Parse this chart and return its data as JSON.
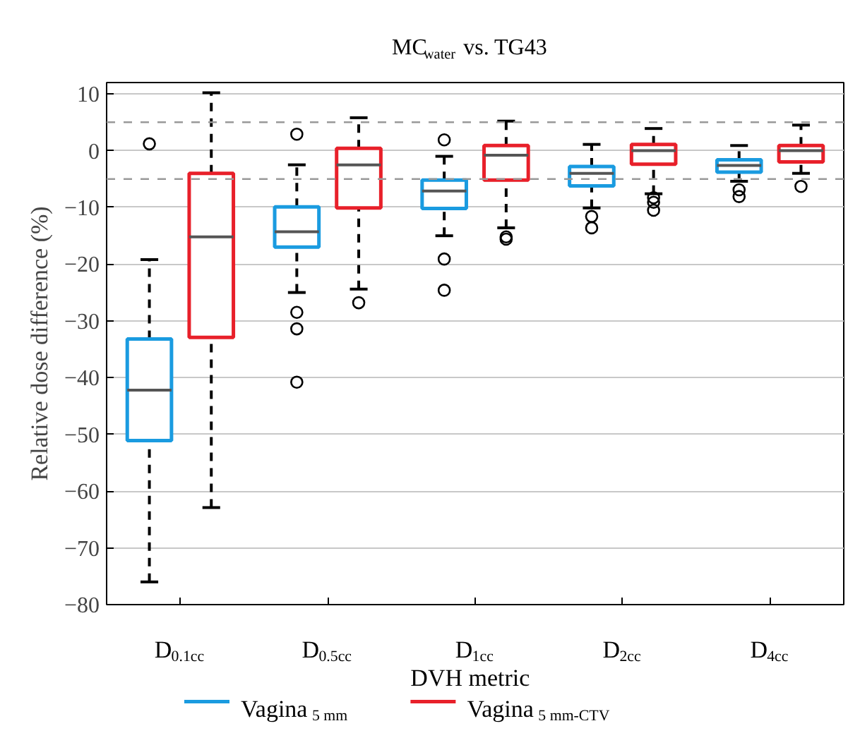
{
  "chart_data": {
    "type": "box",
    "title": "MC$_{water}$ vs. TG43",
    "xlabel": "DVH metric",
    "ylabel": "Relative dose difference (%)",
    "categories": [
      "D$_{0.1cc}$",
      "D$_{0.5cc}$",
      "D$_{1cc}$",
      "D$_{2cc}$",
      "D$_{4cc}$"
    ],
    "ylim": [
      -80,
      12
    ],
    "yticks": [
      -80,
      -70,
      -60,
      -50,
      -40,
      -30,
      -20,
      -10,
      0,
      10
    ],
    "grid": "y",
    "legend": "bottom",
    "series": [
      {
        "name": "Vagina$_{5 mm}$",
        "color": "#1a9be0",
        "boxes": [
          {
            "low": -76.0,
            "q1": -51.1,
            "median": -42.2,
            "q3": -33.2,
            "high": -19.2,
            "outliers": [
              1.2
            ]
          },
          {
            "low": -25.0,
            "q1": -17.0,
            "median": -14.3,
            "q3": -9.9,
            "high": -2.5,
            "outliers": [
              2.9,
              -28.5,
              -31.4,
              -40.8
            ]
          },
          {
            "low": -15.0,
            "q1": -10.2,
            "median": -7.1,
            "q3": -5.2,
            "high": -1.0,
            "outliers": [
              1.9,
              -19.1,
              -24.6
            ]
          },
          {
            "low": -10.1,
            "q1": -6.2,
            "median": -4.0,
            "q3": -2.8,
            "high": 1.1,
            "outliers": [
              -11.6,
              -13.6
            ]
          },
          {
            "low": -5.4,
            "q1": -3.8,
            "median": -2.6,
            "q3": -1.6,
            "high": 0.9,
            "outliers": [
              -6.9,
              -8.1
            ]
          }
        ]
      },
      {
        "name": "Vagina$_{5 mm-CTV}$",
        "color": "#e8202a",
        "boxes": [
          {
            "low": -62.9,
            "q1": -32.9,
            "median": -15.2,
            "q3": -4.0,
            "high": 10.2
          },
          {
            "low": -24.4,
            "q1": -10.1,
            "median": -2.5,
            "q3": 0.4,
            "high": 5.8,
            "outliers": [
              -26.8
            ]
          },
          {
            "low": -13.6,
            "q1": -5.2,
            "median": -0.8,
            "q3": 0.9,
            "high": 5.2,
            "outliers": [
              -15.2,
              -15.6
            ]
          },
          {
            "low": -7.6,
            "q1": -2.4,
            "median": 0.0,
            "q3": 1.1,
            "high": 3.9,
            "outliers": [
              -8.3,
              -9.1,
              -10.5
            ]
          },
          {
            "low": -4.0,
            "q1": -2.0,
            "median": 0.0,
            "q3": 0.9,
            "high": 4.5,
            "outliers": [
              -6.3
            ]
          }
        ]
      }
    ],
    "ref_lines": [
      {
        "axis": "y",
        "value": 5,
        "color": "#999999",
        "line_style": "dashed"
      },
      {
        "axis": "y",
        "value": -5,
        "color": "#999999",
        "line_style": "dashed"
      }
    ]
  }
}
